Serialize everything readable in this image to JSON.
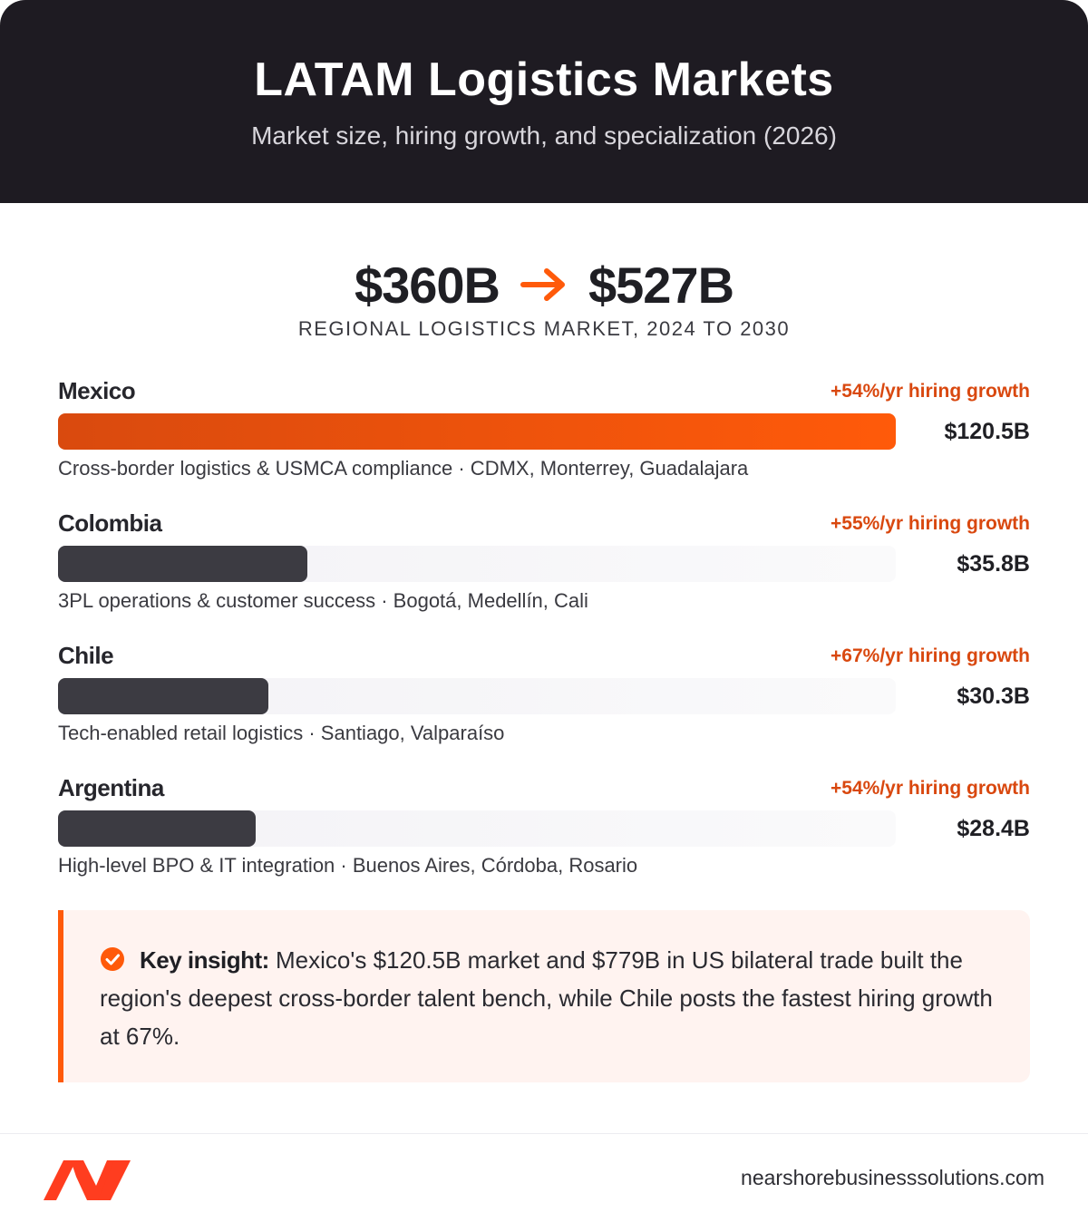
{
  "header": {
    "title": "LATAM Logistics Markets",
    "subtitle": "Market size, hiring growth, and specialization (2026)"
  },
  "hero": {
    "from": "$360B",
    "to": "$527B",
    "caption": "REGIONAL LOGISTICS MARKET, 2024 TO 2030",
    "arrow_icon": "arrow-right-icon"
  },
  "chart_data": {
    "type": "bar",
    "orientation": "horizontal",
    "title": "",
    "xlabel": "",
    "ylabel": "",
    "xlim": [
      0,
      120.5
    ],
    "grid": false,
    "categories": [
      "Mexico",
      "Colombia",
      "Chile",
      "Argentina"
    ],
    "values": [
      120.5,
      35.8,
      30.3,
      28.4
    ],
    "value_labels": [
      "$120.5B",
      "$35.8B",
      "$30.3B",
      "$28.4B"
    ],
    "growth_labels": [
      "+54%/yr hiring growth",
      "+55%/yr hiring growth",
      "+67%/yr hiring growth",
      "+54%/yr hiring growth"
    ],
    "descriptions": [
      "Cross-border logistics & USMCA compliance · CDMX, Monterrey, Guadalajara",
      "3PL operations & customer success · Bogotá, Medellín, Cali",
      "Tech-enabled retail logistics · Santiago, Valparaíso",
      "High-level BPO & IT integration · Buenos Aires, Córdoba, Rosario"
    ],
    "highlight_index": 0,
    "colors": {
      "highlight": "#ff5a0a",
      "default": "#3c3b42",
      "growth": "#d9480f"
    }
  },
  "insight": {
    "icon": "check-circle-icon",
    "label": "Key insight:",
    "text": " Mexico's $120.5B market and $779B in US bilateral trade built the region's deepest cross-border talent bench, while Chile posts the fastest hiring growth at 67%."
  },
  "footer": {
    "logo_icon": "nearshore-logo-icon",
    "url": "nearshorebusinesssolutions.com"
  },
  "colors": {
    "header_bg": "#1e1b22",
    "accent": "#ff5a0a"
  }
}
